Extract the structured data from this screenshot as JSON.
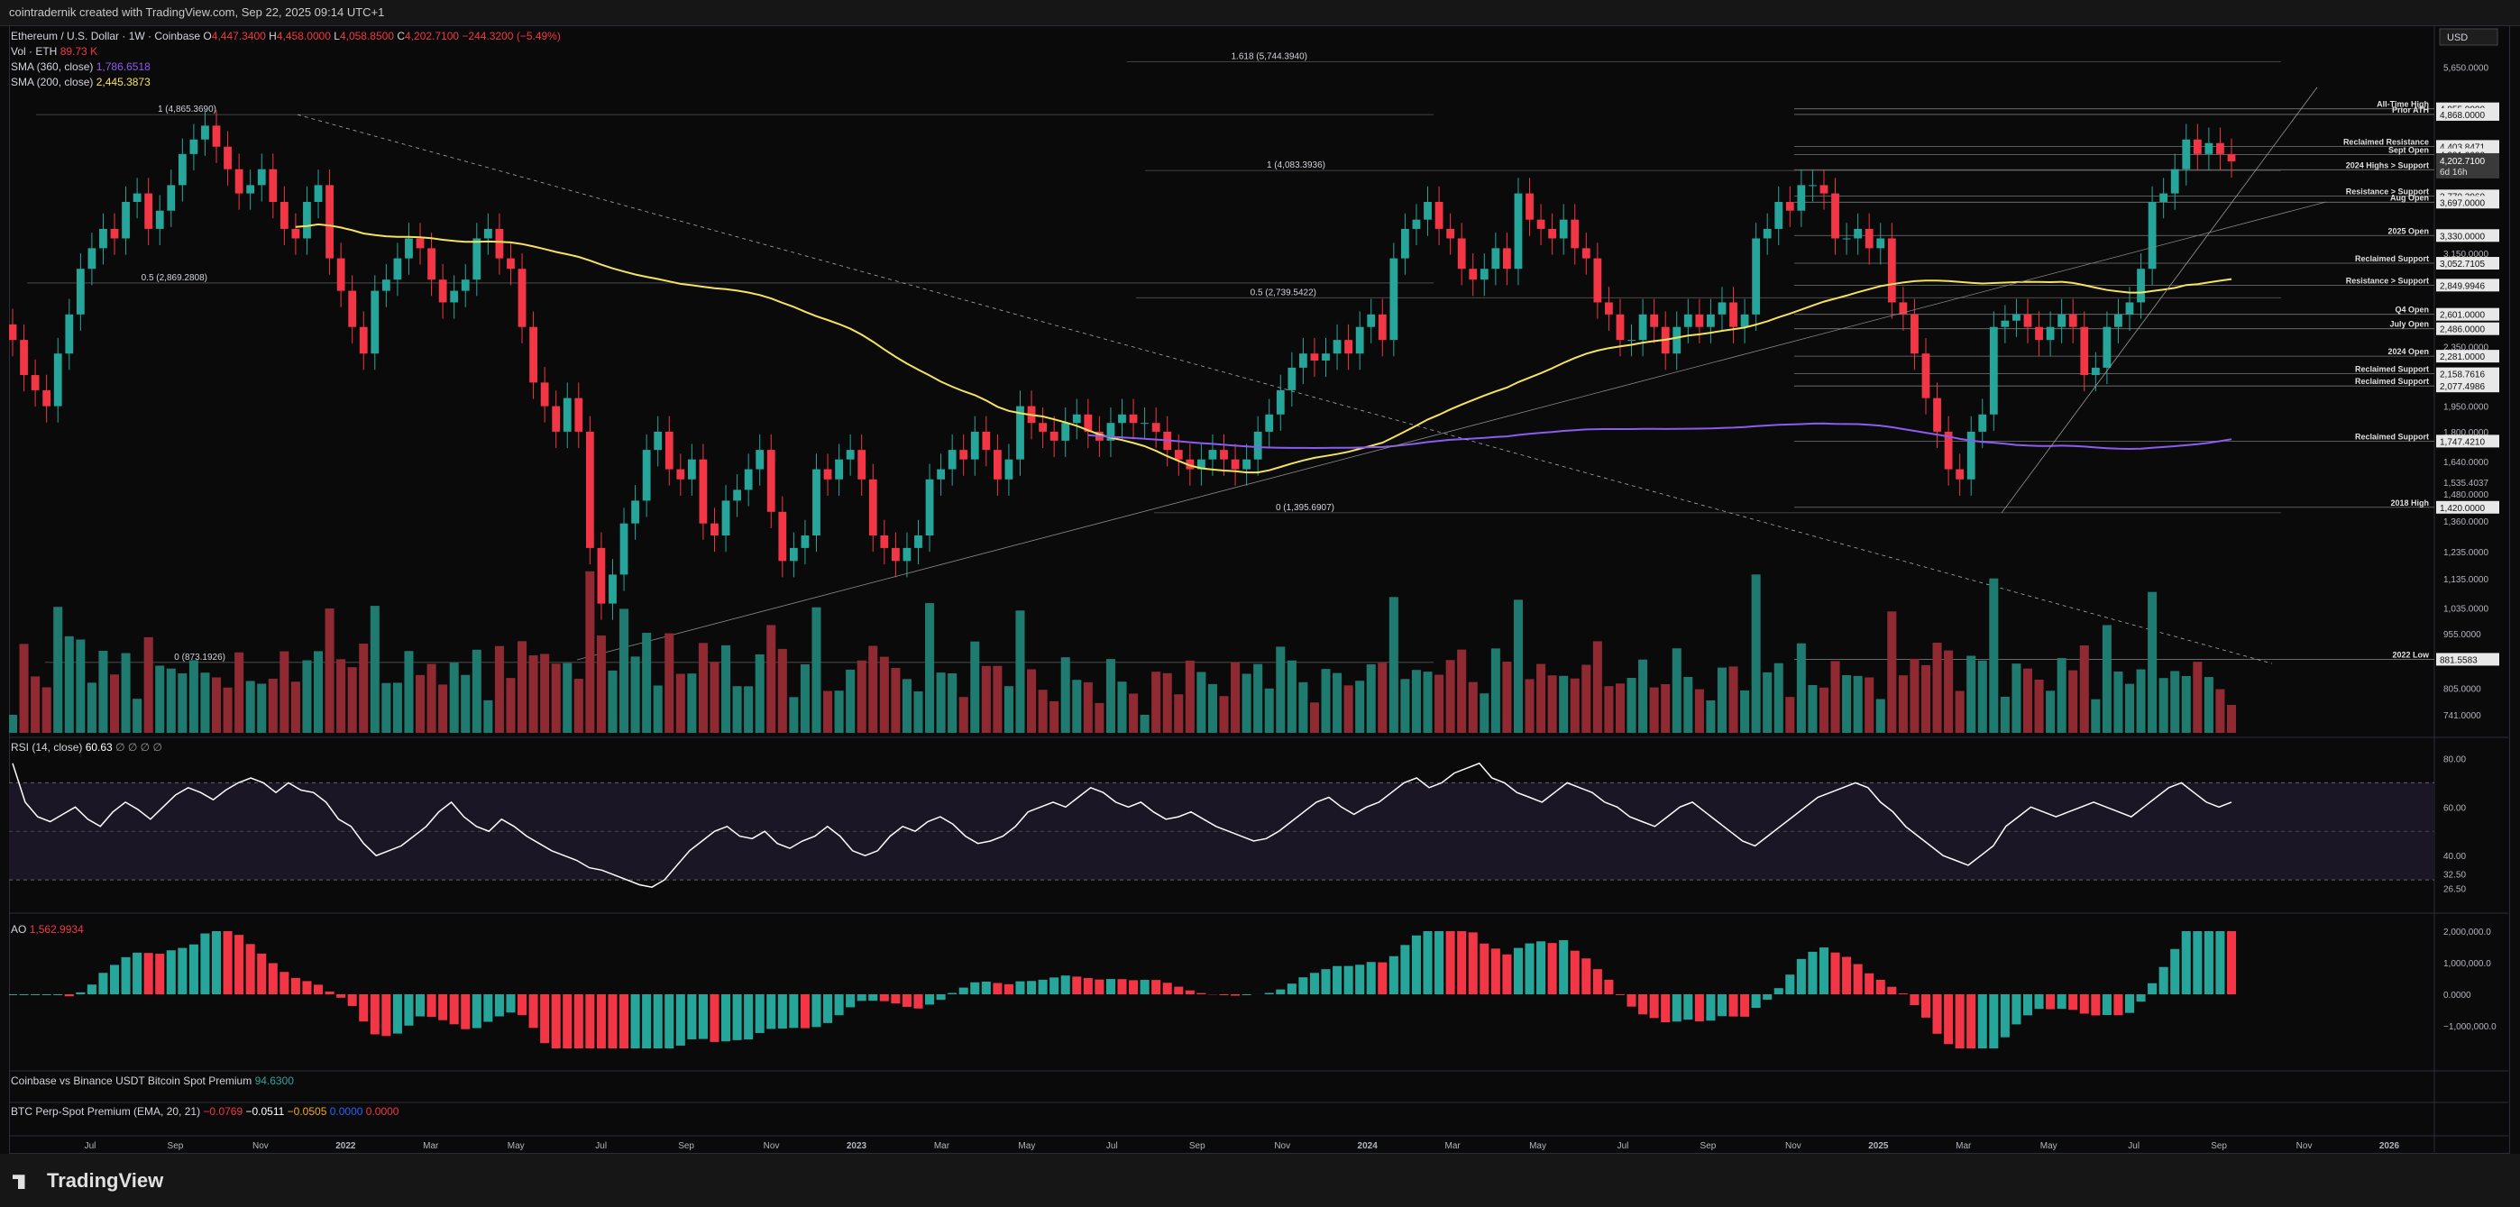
{
  "header": {
    "credit": "cointradernik created with TradingView.com, Sep 22, 2025 09:14 UTC+1"
  },
  "legend": {
    "symbol": "Ethereum / U.S. Dollar · 1W · Coinbase",
    "open_label": "O",
    "open": "4,447.3400",
    "high_label": "H",
    "high": "4,458.0000",
    "low_label": "L",
    "low": "4,058.8500",
    "close_label": "C",
    "close": "4,202.7100",
    "change": "−244.3200 (−5.49%)",
    "vol_label": "Vol · ETH",
    "vol": "89.73 K",
    "sma360_label": "SMA (360, close)",
    "sma360": "1,786.6518",
    "sma200_label": "SMA (200, close)",
    "sma200": "2,445.3873"
  },
  "currency": "USD",
  "rsi": {
    "label": "RSI (14, close)",
    "value": "60.63",
    "extra": "∅ ∅ ∅ ∅"
  },
  "ao": {
    "label": "AO",
    "value": "1,562.9934"
  },
  "premium1": {
    "label": "Coinbase vs Binance USDT Bitcoin Spot Premium",
    "value": "94.6300"
  },
  "premium2": {
    "label": "BTC Perp-Spot Premium (EMA, 20, 21)",
    "v1": "−0.0769",
    "v2": "−0.0511",
    "v3": "−0.0505",
    "v4": "0.0000",
    "v5": "0.0000"
  },
  "brand": "TradingView",
  "colors": {
    "up": "#26a69a",
    "down": "#f23645",
    "sma200": "#f5e35c",
    "sma360": "#8c5cf0",
    "rsi": "#ffffff"
  },
  "chart_data": {
    "type": "line",
    "title": "Ethereum / U.S. Dollar · 1W · Coinbase",
    "x_axis_ticks": [
      "Jul",
      "Sep",
      "Nov",
      "2022",
      "Mar",
      "May",
      "Jul",
      "Sep",
      "Nov",
      "2023",
      "Mar",
      "May",
      "Jul",
      "Sep",
      "Nov",
      "2024",
      "Mar",
      "May",
      "Jul",
      "Sep",
      "Nov",
      "2025",
      "Mar",
      "May",
      "Jul",
      "Sep",
      "Nov",
      "2026"
    ],
    "price_axis_ticks": [
      "5,650.0000",
      "4,955.0000",
      "4,868.0000",
      "4,403.8471",
      "4,291.0000",
      "4,093.0000",
      "3,770.3960",
      "3,697.0000",
      "3,330.0000",
      "3,150.0000",
      "3,052.7105",
      "2,849.9946",
      "2,601.0000",
      "2,486.0000",
      "2,350.0000",
      "2,281.0000",
      "2,158.7616",
      "2,077.4986",
      "1,950.0000",
      "1,800.0000",
      "1,747.4210",
      "1,640.0000",
      "1,535.4037",
      "1,480.0000",
      "1,420.0000",
      "1,360.0000",
      "1,235.0000",
      "1,135.0000",
      "1,035.0000",
      "955.0000",
      "881.5583",
      "805.0000",
      "741.0000"
    ],
    "last_price": {
      "value": "4,202.7100",
      "countdown": "6d 16h"
    },
    "levels": [
      {
        "label": "All-Time High",
        "value": "4,955.0000"
      },
      {
        "label": "Prior ATH",
        "value": "4,868.0000"
      },
      {
        "label": "Reclaimed Resistance",
        "value": "4,403.8471"
      },
      {
        "label": "Sept Open",
        "value": "4,291.0000"
      },
      {
        "label": "2024 Highs > Support",
        "value": "4,093.0000"
      },
      {
        "label": "Resistance > Support",
        "value": "3,770.3960"
      },
      {
        "label": "Aug Open",
        "value": "3,697.0000"
      },
      {
        "label": "2025 Open",
        "value": "3,330.0000"
      },
      {
        "label": "Reclaimed Support",
        "value": "3,052.7105"
      },
      {
        "label": "Resistance > Support",
        "value": "2,849.9946"
      },
      {
        "label": "Q4 Open",
        "value": "2,601.0000"
      },
      {
        "label": "July Open",
        "value": "2,486.0000"
      },
      {
        "label": "2024 Open",
        "value": "2,281.0000"
      },
      {
        "label": "Reclaimed Support",
        "value": "2,158.7616"
      },
      {
        "label": "Reclaimed Support",
        "value": "2,077.4986"
      },
      {
        "label": "Reclaimed Support",
        "value": "1,747.4210"
      },
      {
        "label": "2018 High",
        "value": "1,420.0000"
      },
      {
        "label": "2022 Low",
        "value": "881.5583"
      }
    ],
    "fib_labels": [
      "1.618 (5,744.3940)",
      "1 (4,865.3690)",
      "0.5 (2,869.2808)",
      "0 (873.1926)",
      "1 (4,083.3936)",
      "0.5 (2,739.5422)",
      "0 (1,395.6907)"
    ],
    "rsi_axis": [
      "80.00",
      "60.00",
      "40.00",
      "32.50",
      "26.50"
    ],
    "ao_axis": [
      "2,000,000.0",
      "1,000,000.0",
      "0.0000",
      "−1,000,000.0"
    ],
    "weekly_close": [
      2400,
      2150,
      2050,
      1950,
      2300,
      2600,
      3000,
      3200,
      3400,
      3300,
      3700,
      3800,
      3400,
      3600,
      3900,
      4300,
      4500,
      4700,
      4400,
      4100,
      3800,
      3900,
      4100,
      3700,
      3400,
      3300,
      3700,
      3900,
      3100,
      2800,
      2500,
      2300,
      2800,
      2900,
      3100,
      3300,
      3200,
      2900,
      2700,
      2800,
      2900,
      3300,
      3400,
      3100,
      3000,
      2500,
      2100,
      1950,
      1800,
      2000,
      1800,
      1250,
      1050,
      1150,
      1350,
      1450,
      1700,
      1800,
      1600,
      1550,
      1650,
      1350,
      1300,
      1450,
      1500,
      1600,
      1700,
      1400,
      1200,
      1250,
      1300,
      1600,
      1550,
      1650,
      1700,
      1550,
      1300,
      1250,
      1200,
      1250,
      1300,
      1550,
      1600,
      1700,
      1650,
      1800,
      1700,
      1550,
      1650,
      1950,
      1850,
      1800,
      1750,
      1850,
      1900,
      1800,
      1750,
      1850,
      1900,
      1850,
      1850,
      1800,
      1700,
      1650,
      1600,
      1650,
      1700,
      1650,
      1600,
      1650,
      1800,
      1900,
      2050,
      2200,
      2300,
      2250,
      2300,
      2400,
      2300,
      2500,
      2600,
      2400,
      3100,
      3400,
      3500,
      3700,
      3400,
      3300,
      3000,
      2900,
      3000,
      3200,
      3000,
      3800,
      3500,
      3400,
      3300,
      3500,
      3200,
      3100,
      2700,
      2600,
      2400,
      2400,
      2600,
      2500,
      2300,
      2500,
      2600,
      2500,
      2600,
      2700,
      2500,
      2600,
      3300,
      3400,
      3700,
      3600,
      3900,
      3900,
      3800,
      3300,
      3300,
      3400,
      3200,
      3300,
      2700,
      2600,
      2300,
      2000,
      1800,
      1600,
      1550,
      1800,
      1900,
      2500,
      2550,
      2600,
      2500,
      2400,
      2500,
      2600,
      2500,
      2150,
      2200,
      2500,
      2600,
      2700,
      3000,
      3700,
      3800,
      4100,
      4500,
      4300,
      4450,
      4300,
      4202.71
    ],
    "rsi_values": [
      78,
      62,
      56,
      54,
      57,
      60,
      55,
      52,
      58,
      62,
      59,
      55,
      60,
      65,
      68,
      66,
      63,
      67,
      70,
      72,
      70,
      66,
      70,
      67,
      66,
      62,
      55,
      52,
      45,
      40,
      42,
      44,
      48,
      52,
      58,
      62,
      56,
      52,
      50,
      55,
      52,
      48,
      45,
      42,
      40,
      38,
      35,
      34,
      32,
      30,
      28,
      27,
      30,
      36,
      42,
      46,
      50,
      52,
      48,
      47,
      50,
      45,
      43,
      46,
      48,
      52,
      48,
      42,
      40,
      42,
      48,
      52,
      50,
      54,
      56,
      53,
      48,
      45,
      46,
      48,
      52,
      58,
      60,
      62,
      60,
      64,
      68,
      66,
      62,
      60,
      62,
      58,
      55,
      56,
      58,
      55,
      52,
      50,
      48,
      46,
      47,
      50,
      54,
      58,
      62,
      64,
      60,
      57,
      60,
      62,
      66,
      70,
      72,
      68,
      70,
      74,
      76,
      78,
      72,
      70,
      66,
      64,
      62,
      66,
      70,
      68,
      66,
      62,
      60,
      56,
      54,
      52,
      56,
      60,
      62,
      58,
      54,
      50,
      46,
      44,
      48,
      52,
      56,
      60,
      64,
      66,
      68,
      70,
      68,
      62,
      58,
      52,
      48,
      44,
      40,
      38,
      36,
      40,
      44,
      52,
      56,
      60,
      58,
      56,
      58,
      60,
      62,
      60,
      58,
      56,
      60,
      64,
      68,
      70,
      66,
      62,
      60,
      62
    ]
  }
}
